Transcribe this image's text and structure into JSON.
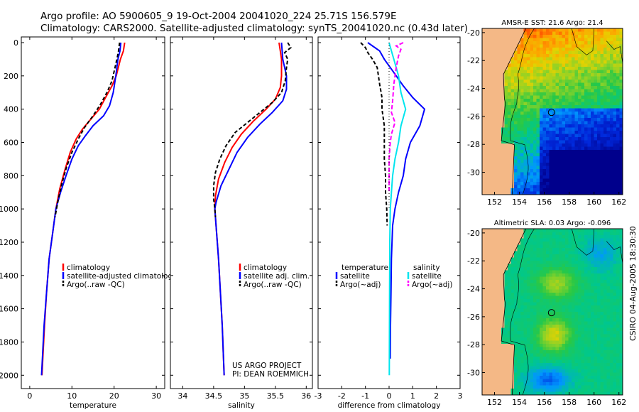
{
  "title_line1": "Argo profile: AO 5900605_9 19-Oct-2004 20041020_224 25.71S 156.579E",
  "title_line2": "Climatology: CARS2000. Satellite-adjusted climatology: synTS_20041020.nc (0.43d later)",
  "side_label": "CSIRO 04-Aug-2005 18:30:30",
  "project_line1": "US ARGO PROJECT",
  "project_line2": "PI: DEAN ROEMMICH",
  "colors": {
    "climatology": "#ff0000",
    "satellite": "#0000ff",
    "argo": "#000000",
    "sal_satellite": "#00e5ee",
    "sal_argo": "#ff00ff"
  },
  "chart_data": [
    {
      "type": "line",
      "title": "",
      "xlabel": "temperature",
      "ylabel": "",
      "xlim": [
        -2,
        32
      ],
      "ylim": [
        0,
        2080
      ],
      "y_inverted": true,
      "xticks": [
        0,
        10,
        20,
        30
      ],
      "yticks": [
        0,
        200,
        400,
        600,
        800,
        1000,
        1200,
        1400,
        1600,
        1800,
        2000
      ],
      "legend": [
        "climatology",
        "satellite-adjusted climatology",
        "Argo(..raw -QC)"
      ],
      "series": [
        {
          "name": "climatology",
          "color": "#ff0000",
          "dash": "",
          "points": [
            [
              22.5,
              0
            ],
            [
              22.2,
              50
            ],
            [
              21.5,
              100
            ],
            [
              20.5,
              200
            ],
            [
              19.5,
              260
            ],
            [
              18.2,
              320
            ],
            [
              16.5,
              400
            ],
            [
              14.5,
              460
            ],
            [
              12.5,
              520
            ],
            [
              11,
              580
            ],
            [
              9.6,
              660
            ],
            [
              8.4,
              760
            ],
            [
              7.1,
              880
            ],
            [
              6.2,
              1000
            ],
            [
              5.4,
              1150
            ],
            [
              4.6,
              1300
            ],
            [
              4,
              1500
            ],
            [
              3.5,
              1700
            ],
            [
              3.1,
              1900
            ],
            [
              2.9,
              2000
            ]
          ]
        },
        {
          "name": "satellite-adjusted climatology",
          "color": "#0000ff",
          "dash": "",
          "points": [
            [
              21.6,
              0
            ],
            [
              21.4,
              50
            ],
            [
              20.9,
              100
            ],
            [
              20.4,
              200
            ],
            [
              19.8,
              300
            ],
            [
              18.9,
              380
            ],
            [
              17.5,
              440
            ],
            [
              15,
              500
            ],
            [
              13.2,
              560
            ],
            [
              11.5,
              620
            ],
            [
              10,
              700
            ],
            [
              8.6,
              800
            ],
            [
              7.3,
              900
            ],
            [
              6.2,
              1000
            ],
            [
              5.4,
              1150
            ],
            [
              4.6,
              1300
            ],
            [
              4,
              1500
            ],
            [
              3.4,
              1700
            ],
            [
              3,
              1900
            ],
            [
              2.8,
              2000
            ]
          ]
        },
        {
          "name": "Argo(..raw -QC)",
          "color": "#000000",
          "dash": "5,3",
          "points": [
            [
              21.3,
              0
            ],
            [
              21,
              60
            ],
            [
              20.3,
              140
            ],
            [
              19.5,
              230
            ],
            [
              18.3,
              300
            ],
            [
              16.8,
              370
            ],
            [
              15,
              440
            ],
            [
              13,
              510
            ],
            [
              11.5,
              580
            ],
            [
              10,
              660
            ],
            [
              8.7,
              750
            ],
            [
              7.6,
              850
            ],
            [
              6.7,
              950
            ],
            [
              6,
              1050
            ]
          ]
        }
      ]
    },
    {
      "type": "line",
      "title": "",
      "xlabel": "salinity",
      "ylabel": "",
      "xlim": [
        33.8,
        36.1
      ],
      "ylim": [
        0,
        2080
      ],
      "y_inverted": true,
      "xticks": [
        34,
        34.5,
        35,
        35.5,
        36
      ],
      "yticks": [
        0,
        200,
        400,
        600,
        800,
        1000,
        1200,
        1400,
        1600,
        1800,
        2000
      ],
      "legend": [
        "climatology",
        "satellite adj. clim.",
        "Argo(..raw -QC)"
      ],
      "series": [
        {
          "name": "climatology",
          "color": "#ff0000",
          "dash": "",
          "points": [
            [
              35.56,
              0
            ],
            [
              35.58,
              50
            ],
            [
              35.6,
              100
            ],
            [
              35.6,
              200
            ],
            [
              35.58,
              270
            ],
            [
              35.5,
              340
            ],
            [
              35.35,
              400
            ],
            [
              35.15,
              470
            ],
            [
              34.95,
              550
            ],
            [
              34.8,
              630
            ],
            [
              34.68,
              720
            ],
            [
              34.58,
              820
            ],
            [
              34.53,
              920
            ],
            [
              34.52,
              1000
            ],
            [
              34.54,
              1100
            ],
            [
              34.58,
              1300
            ],
            [
              34.61,
              1500
            ],
            [
              34.64,
              1700
            ],
            [
              34.66,
              1900
            ],
            [
              34.67,
              2000
            ]
          ]
        },
        {
          "name": "satellite adj. clim.",
          "color": "#0000ff",
          "dash": "",
          "points": [
            [
              35.6,
              0
            ],
            [
              35.62,
              100
            ],
            [
              35.68,
              200
            ],
            [
              35.68,
              280
            ],
            [
              35.62,
              350
            ],
            [
              35.45,
              420
            ],
            [
              35.25,
              490
            ],
            [
              35.05,
              570
            ],
            [
              34.88,
              660
            ],
            [
              34.75,
              760
            ],
            [
              34.62,
              860
            ],
            [
              34.54,
              960
            ],
            [
              34.52,
              1000
            ],
            [
              34.54,
              1100
            ],
            [
              34.58,
              1300
            ],
            [
              34.61,
              1500
            ],
            [
              34.64,
              1700
            ],
            [
              34.66,
              1900
            ],
            [
              34.67,
              2000
            ]
          ]
        },
        {
          "name": "Argo(..raw -QC)",
          "color": "#000000",
          "dash": "5,3",
          "points": [
            [
              35.7,
              0
            ],
            [
              35.75,
              30
            ],
            [
              35.65,
              60
            ],
            [
              35.7,
              100
            ],
            [
              35.68,
              150
            ],
            [
              35.66,
              230
            ],
            [
              35.6,
              300
            ],
            [
              35.45,
              360
            ],
            [
              35.25,
              420
            ],
            [
              35.05,
              480
            ],
            [
              34.85,
              540
            ],
            [
              34.7,
              620
            ],
            [
              34.6,
              700
            ],
            [
              34.53,
              780
            ],
            [
              34.5,
              860
            ],
            [
              34.5,
              940
            ],
            [
              34.52,
              1000
            ],
            [
              34.53,
              1050
            ]
          ]
        }
      ]
    },
    {
      "type": "line",
      "title": "",
      "xlabel": "difference from climatology",
      "ylabel": "",
      "xlim": [
        -3,
        3
      ],
      "ylim": [
        0,
        2080
      ],
      "y_inverted": true,
      "xticks": [
        -3,
        -2,
        -1,
        0,
        1,
        2,
        3
      ],
      "yticks": [
        0,
        200,
        400,
        600,
        800,
        1000,
        1200,
        1400,
        1600,
        1800,
        2000
      ],
      "legend_left_header": "temperature",
      "legend_right_header": "salinity",
      "legend_left": [
        "satellite",
        "Argo(~adj)"
      ],
      "legend_right": [
        "satellite",
        "Argo(~adj)"
      ],
      "series": [
        {
          "name": "temperature satellite",
          "color": "#0000ff",
          "dash": "",
          "points": [
            [
              -0.9,
              0
            ],
            [
              -0.4,
              50
            ],
            [
              -0.2,
              100
            ],
            [
              0.2,
              180
            ],
            [
              0.6,
              260
            ],
            [
              1,
              330
            ],
            [
              1.5,
              400
            ],
            [
              1.3,
              500
            ],
            [
              0.9,
              600
            ],
            [
              0.7,
              700
            ],
            [
              0.6,
              800
            ],
            [
              0.4,
              900
            ],
            [
              0.25,
              1000
            ],
            [
              0.15,
              1100
            ],
            [
              0.1,
              1300
            ],
            [
              0.08,
              1500
            ],
            [
              0.06,
              1700
            ],
            [
              0.05,
              1900
            ]
          ]
        },
        {
          "name": "temperature Argo(~adj)",
          "color": "#000000",
          "dash": "5,3",
          "points": [
            [
              -1.2,
              0
            ],
            [
              -1,
              30
            ],
            [
              -0.9,
              60
            ],
            [
              -0.7,
              100
            ],
            [
              -0.5,
              150
            ],
            [
              -0.4,
              250
            ],
            [
              -0.3,
              330
            ],
            [
              -0.3,
              400
            ],
            [
              -0.2,
              500
            ],
            [
              -0.2,
              600
            ],
            [
              -0.2,
              700
            ],
            [
              -0.15,
              800
            ],
            [
              -0.15,
              900
            ],
            [
              -0.1,
              1000
            ],
            [
              -0.08,
              1100
            ]
          ]
        },
        {
          "name": "salinity satellite",
          "color": "#00e5ee",
          "dash": "",
          "points": [
            [
              0,
              0
            ],
            [
              0.1,
              50
            ],
            [
              0.2,
              100
            ],
            [
              0.4,
              200
            ],
            [
              0.5,
              300
            ],
            [
              0.7,
              400
            ],
            [
              0.5,
              500
            ],
            [
              0.4,
              600
            ],
            [
              0.25,
              700
            ],
            [
              0.15,
              800
            ],
            [
              0.1,
              900
            ],
            [
              0.05,
              1000
            ],
            [
              0.03,
              1200
            ],
            [
              0.02,
              1500
            ],
            [
              0.01,
              2000
            ]
          ]
        },
        {
          "name": "salinity Argo(~adj)",
          "color": "#ff00ff",
          "dash": "6,3",
          "points": [
            [
              0.6,
              0
            ],
            [
              0.3,
              20
            ],
            [
              0.5,
              40
            ],
            [
              0.4,
              80
            ],
            [
              0.3,
              150
            ],
            [
              0.2,
              250
            ],
            [
              0.15,
              350
            ],
            [
              0.1,
              420
            ],
            [
              0.25,
              480
            ],
            [
              0.1,
              550
            ],
            [
              0.05,
              600
            ],
            [
              0,
              700
            ],
            [
              0,
              800
            ],
            [
              0,
              900
            ]
          ]
        },
        {
          "name": "zero reference",
          "color": "#000000",
          "dash": "1,3",
          "points": [
            [
              0,
              0
            ],
            [
              0,
              1000
            ]
          ]
        }
      ]
    },
    {
      "type": "heatmap",
      "title": "AMSR-E SST: 21.6 Argo: 21.4",
      "xlabel": "",
      "ylabel": "",
      "xlim": [
        151,
        162.3
      ],
      "ylim": [
        -31.6,
        -19.7
      ],
      "xticks": [
        152,
        154,
        156,
        158,
        160,
        162
      ],
      "yticks": [
        -20,
        -22,
        -24,
        -26,
        -28,
        -30
      ],
      "marker": [
        156.58,
        -25.71
      ]
    },
    {
      "type": "heatmap",
      "title": "Altimetric SLA: 0.03 Argo: -0.096",
      "xlabel": "",
      "ylabel": "",
      "xlim": [
        151,
        162.3
      ],
      "ylim": [
        -31.6,
        -19.7
      ],
      "xticks": [
        152,
        154,
        156,
        158,
        160,
        162
      ],
      "yticks": [
        -20,
        -22,
        -24,
        -26,
        -28,
        -30
      ],
      "marker": [
        156.58,
        -25.71
      ]
    }
  ]
}
